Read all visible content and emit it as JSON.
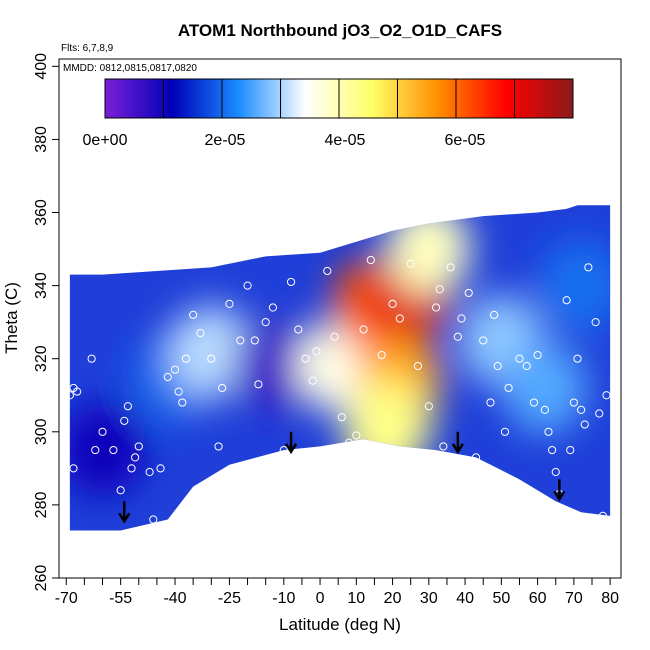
{
  "chart_data": {
    "type": "heatmap",
    "title": "ATOM1 Northbound jO3_O2_O1D_CAFS",
    "annotations": {
      "flights": "Flts: 6,7,8,9",
      "dates": "MMDD: 0812,0815,0817,0820"
    },
    "xlabel": "Latitude (deg N)",
    "ylabel": "Theta (C)",
    "xlim": [
      -72,
      83
    ],
    "ylim": [
      260,
      402
    ],
    "x_ticks": [
      -70,
      -55,
      -40,
      -25,
      -10,
      0,
      10,
      20,
      30,
      40,
      50,
      60,
      70,
      80
    ],
    "y_ticks": [
      260,
      280,
      300,
      320,
      340,
      360,
      380,
      400
    ],
    "colorbar": {
      "range": [
        0,
        7.8e-05
      ],
      "ticks": [
        0,
        2e-05,
        4e-05,
        6e-05
      ],
      "tick_labels": [
        "0e+00",
        "2e-05",
        "4e-05",
        "6e-05"
      ],
      "colors": [
        "#7a1fd6",
        "#0000b8",
        "#1a8cff",
        "#ffffff",
        "#ffff66",
        "#ff8c00",
        "#ff0000",
        "#8b1a1a"
      ]
    },
    "top_boundary": [
      [
        -69,
        343
      ],
      [
        -60,
        343
      ],
      [
        -45,
        344
      ],
      [
        -30,
        345
      ],
      [
        -15,
        348
      ],
      [
        0,
        349
      ],
      [
        10,
        352
      ],
      [
        20,
        355
      ],
      [
        30,
        357
      ],
      [
        45,
        359
      ],
      [
        60,
        360
      ],
      [
        68,
        361
      ],
      [
        71,
        362
      ],
      [
        80,
        362
      ]
    ],
    "bottom_boundary": [
      [
        -69,
        273
      ],
      [
        -55,
        273
      ],
      [
        -42,
        276
      ],
      [
        -35,
        285
      ],
      [
        -25,
        291
      ],
      [
        -10,
        295
      ],
      [
        0,
        296
      ],
      [
        12,
        298
      ],
      [
        22,
        296
      ],
      [
        32,
        295
      ],
      [
        43,
        293
      ],
      [
        55,
        287
      ],
      [
        65,
        281
      ],
      [
        72,
        278
      ],
      [
        80,
        277
      ]
    ],
    "features": [
      {
        "lat": -60,
        "theta": 295,
        "value": 1e-05
      },
      {
        "lat": -40,
        "theta": 315,
        "value": 2e-05
      },
      {
        "lat": -30,
        "theta": 322,
        "value": 3e-05
      },
      {
        "lat": -12,
        "theta": 318,
        "value": 6e-06
      },
      {
        "lat": 5,
        "theta": 318,
        "value": 3.5e-05
      },
      {
        "lat": 15,
        "theta": 335,
        "value": 6e-05
      },
      {
        "lat": 25,
        "theta": 338,
        "value": 7e-05
      },
      {
        "lat": 22,
        "theta": 315,
        "value": 5.5e-05
      },
      {
        "lat": 20,
        "theta": 305,
        "value": 4.8e-05
      },
      {
        "lat": 18,
        "theta": 300,
        "value": 4.2e-05
      },
      {
        "lat": 30,
        "theta": 350,
        "value": 3.8e-05
      },
      {
        "lat": 50,
        "theta": 325,
        "value": 2.8e-05
      },
      {
        "lat": 62,
        "theta": 312,
        "value": 2.5e-05
      },
      {
        "lat": 72,
        "theta": 340,
        "value": 2e-05
      }
    ],
    "arrows": [
      {
        "lat": -54,
        "theta": 281
      },
      {
        "lat": -8,
        "theta": 300
      },
      {
        "lat": 38,
        "theta": 300
      },
      {
        "lat": 66,
        "theta": 287
      }
    ],
    "points": [
      [
        -69,
        310
      ],
      [
        -68,
        312
      ],
      [
        -68,
        290
      ],
      [
        -67,
        311
      ],
      [
        -63,
        320
      ],
      [
        -62,
        295
      ],
      [
        -60,
        300
      ],
      [
        -57,
        295
      ],
      [
        -55,
        284
      ],
      [
        -54,
        303
      ],
      [
        -53,
        307
      ],
      [
        -52,
        290
      ],
      [
        -51,
        293
      ],
      [
        -50,
        296
      ],
      [
        -47,
        289
      ],
      [
        -46,
        276
      ],
      [
        -44,
        290
      ],
      [
        -42,
        315
      ],
      [
        -40,
        317
      ],
      [
        -39,
        311
      ],
      [
        -38,
        308
      ],
      [
        -37,
        320
      ],
      [
        -35,
        332
      ],
      [
        -33,
        327
      ],
      [
        -30,
        320
      ],
      [
        -28,
        296
      ],
      [
        -27,
        312
      ],
      [
        -25,
        335
      ],
      [
        -22,
        325
      ],
      [
        -20,
        340
      ],
      [
        -18,
        325
      ],
      [
        -17,
        313
      ],
      [
        -15,
        330
      ],
      [
        -13,
        334
      ],
      [
        -10,
        295
      ],
      [
        -8,
        341
      ],
      [
        -6,
        328
      ],
      [
        -4,
        320
      ],
      [
        -2,
        314
      ],
      [
        -1,
        322
      ],
      [
        2,
        344
      ],
      [
        4,
        326
      ],
      [
        6,
        304
      ],
      [
        8,
        297
      ],
      [
        10,
        299
      ],
      [
        12,
        328
      ],
      [
        14,
        347
      ],
      [
        17,
        321
      ],
      [
        20,
        335
      ],
      [
        22,
        331
      ],
      [
        25,
        346
      ],
      [
        27,
        318
      ],
      [
        30,
        307
      ],
      [
        32,
        334
      ],
      [
        33,
        339
      ],
      [
        34,
        296
      ],
      [
        36,
        345
      ],
      [
        38,
        326
      ],
      [
        39,
        331
      ],
      [
        41,
        338
      ],
      [
        43,
        293
      ],
      [
        45,
        325
      ],
      [
        47,
        308
      ],
      [
        48,
        332
      ],
      [
        49,
        318
      ],
      [
        51,
        300
      ],
      [
        52,
        312
      ],
      [
        55,
        320
      ],
      [
        57,
        318
      ],
      [
        59,
        308
      ],
      [
        60,
        321
      ],
      [
        62,
        306
      ],
      [
        63,
        300
      ],
      [
        64,
        295
      ],
      [
        65,
        289
      ],
      [
        66,
        283
      ],
      [
        68,
        336
      ],
      [
        69,
        295
      ],
      [
        70,
        308
      ],
      [
        71,
        320
      ],
      [
        72,
        306
      ],
      [
        73,
        302
      ],
      [
        74,
        345
      ],
      [
        76,
        330
      ],
      [
        77,
        305
      ],
      [
        78,
        277
      ],
      [
        79,
        310
      ]
    ]
  }
}
